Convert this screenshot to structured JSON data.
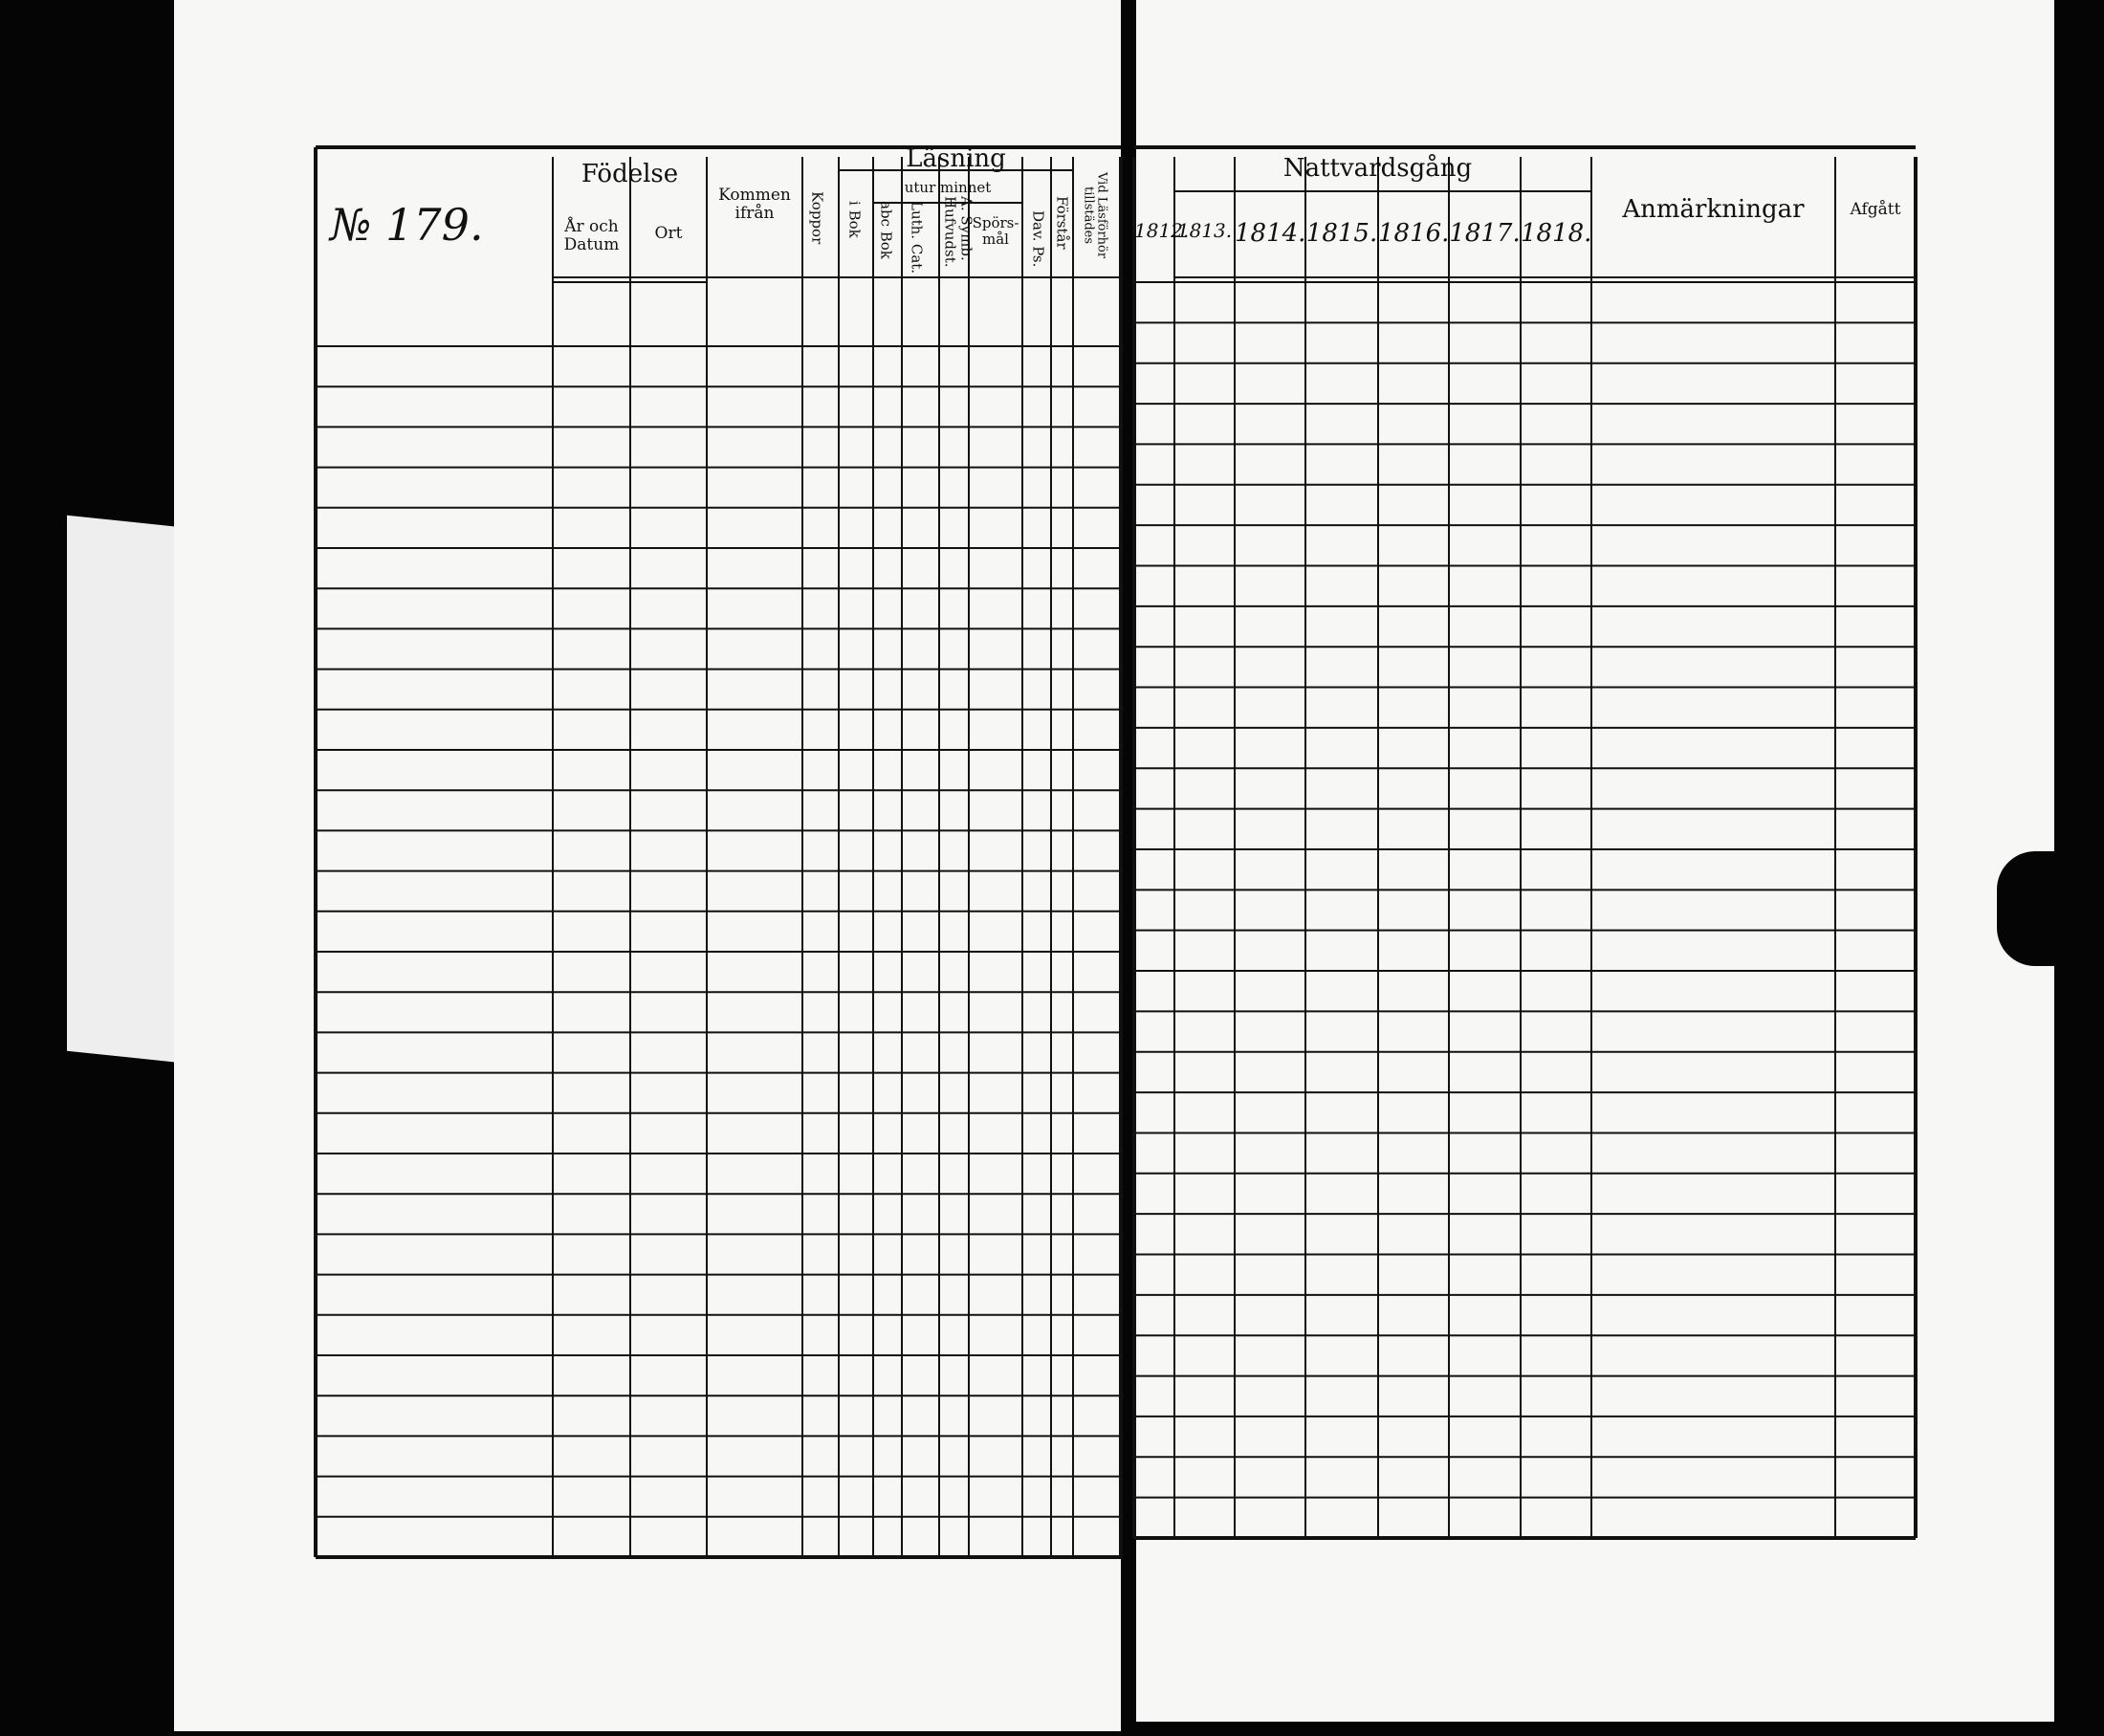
{
  "left_page": {
    "number_label": "№ 179.",
    "headers": {
      "fodelse": "Födelse",
      "ar_och_datum": "År och Datum",
      "ort": "Ort",
      "kommen_ifran": "Kommen ifrån",
      "koppor": "Koppor",
      "lasning": "Läsning",
      "utur_minnet": "utur minnet",
      "i_bok": "i Bok",
      "abc_bok": "abc Bok",
      "luth_cat": "Luth. Cat.",
      "hufvudst": "Hufvudst.",
      "a_symb": "A. Symb.",
      "sporsmal": "Spörs-mål",
      "dav_ps": "Dav. Ps.",
      "forstar": "Förstår",
      "vid_lasforhor": "Vid Läsförhör tillstädes"
    }
  },
  "right_page": {
    "headers": {
      "nattvardsgang": "Nattvardsgång",
      "years": [
        "1812.",
        "1813.",
        "1814.",
        "1815.",
        "1816.",
        "1817.",
        "1818."
      ],
      "anmarkningar": "Anmärkningar",
      "afgatt": "Afgått"
    }
  },
  "colors": {
    "paper": "#f7f7f5",
    "ink": "#111111",
    "background": "#050505"
  }
}
